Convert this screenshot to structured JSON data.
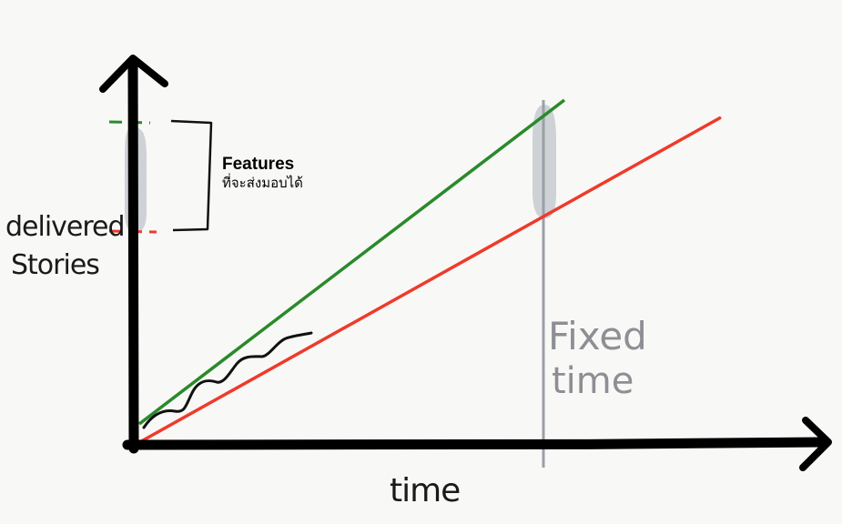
{
  "labels": {
    "y_axis_line1": "delivered",
    "y_axis_line2": "Stories",
    "x_axis": "time",
    "fixed_time_line1": "Fixed",
    "fixed_time_line2": "time",
    "features_title": "Features",
    "features_subtitle": "ที่จะส่งมอบได้"
  },
  "colors": {
    "background": "#f8f8f6",
    "axes": "#000000",
    "optimistic_line": "#2a8a2a",
    "pessimistic_line": "#ee3b2b",
    "fixed_time_line": "#9aa0a8",
    "uncertainty_band": "#c9ccd1"
  }
}
